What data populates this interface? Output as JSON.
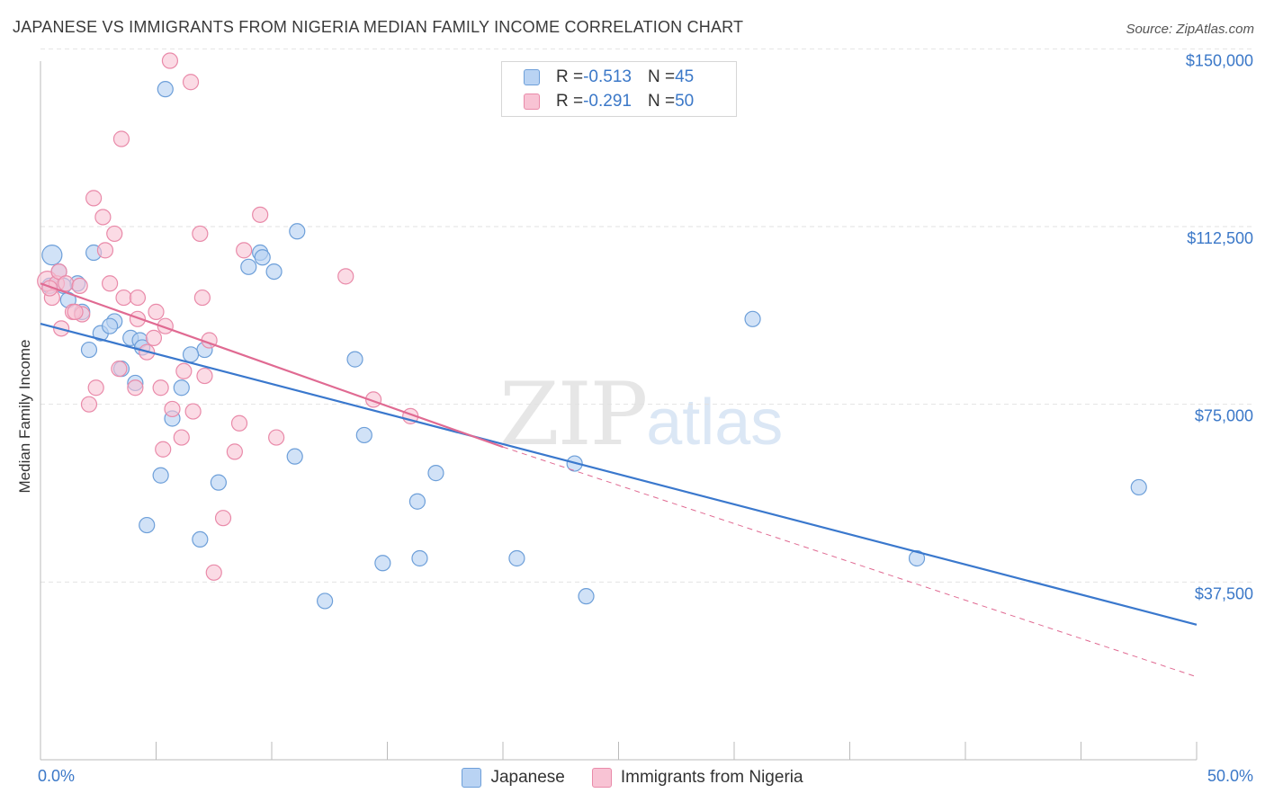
{
  "title": "JAPANESE VS IMMIGRANTS FROM NIGERIA MEDIAN FAMILY INCOME CORRELATION CHART",
  "source": "Source: ZipAtlas.com",
  "watermark": {
    "zip": "ZIP",
    "atlas": "atlas"
  },
  "legend_top": [
    {
      "r_label": "R = ",
      "r_value": "-0.513",
      "n_label": "N = ",
      "n_value": "45"
    },
    {
      "r_label": "R = ",
      "r_value": "-0.291",
      "n_label": "N = ",
      "n_value": "50"
    }
  ],
  "legend_bottom": [
    "Japanese",
    "Immigrants from Nigeria"
  ],
  "colors": {
    "japanese_fill": "#b9d3f3",
    "japanese_stroke": "#6d9fd9",
    "japanese_line": "#3a78cd",
    "nigeria_fill": "#f8c3d4",
    "nigeria_stroke": "#e98aa9",
    "nigeria_line": "#e06a92",
    "axis_text": "#3b78c8",
    "grid": "#e2e2e2"
  },
  "chart_data": {
    "type": "scatter",
    "title": "JAPANESE VS IMMIGRANTS FROM NIGERIA MEDIAN FAMILY INCOME CORRELATION CHART",
    "xlabel": "",
    "ylabel": "Median Family Income",
    "xlim": [
      0,
      50
    ],
    "ylim": [
      0,
      155000
    ],
    "x_tick_labels": [
      "0.0%",
      "50.0%"
    ],
    "y_ticks": [
      37500,
      75000,
      112500,
      150000
    ],
    "y_tick_labels": [
      "$37,500",
      "$75,000",
      "$112,500",
      "$150,000"
    ],
    "grid": "horizontal dashed",
    "legend_placement": "top-center",
    "series": [
      {
        "name": "Japanese",
        "R": -0.513,
        "N": 45,
        "trend": {
          "x": [
            0,
            50
          ],
          "y": [
            92000,
            28500
          ]
        },
        "points": [
          [
            0.5,
            106500
          ],
          [
            0.8,
            103000
          ],
          [
            0.4,
            100000
          ],
          [
            1.6,
            100500
          ],
          [
            1.0,
            100000
          ],
          [
            2.3,
            107000
          ],
          [
            5.4,
            141500
          ],
          [
            3.2,
            92500
          ],
          [
            1.2,
            97000
          ],
          [
            2.6,
            90000
          ],
          [
            3.9,
            89000
          ],
          [
            4.3,
            88500
          ],
          [
            1.8,
            94500
          ],
          [
            2.1,
            86500
          ],
          [
            4.4,
            87000
          ],
          [
            7.1,
            86500
          ],
          [
            6.5,
            85500
          ],
          [
            3.5,
            82500
          ],
          [
            4.1,
            79500
          ],
          [
            6.1,
            78500
          ],
          [
            5.7,
            72000
          ],
          [
            9.0,
            104000
          ],
          [
            9.5,
            107000
          ],
          [
            9.6,
            106000
          ],
          [
            10.1,
            103000
          ],
          [
            11.0,
            64000
          ],
          [
            11.1,
            111500
          ],
          [
            13.6,
            84500
          ],
          [
            14.0,
            68500
          ],
          [
            16.3,
            54500
          ],
          [
            17.1,
            60500
          ],
          [
            5.2,
            60000
          ],
          [
            7.7,
            58500
          ],
          [
            4.6,
            49500
          ],
          [
            6.9,
            46500
          ],
          [
            14.8,
            41500
          ],
          [
            16.4,
            42500
          ],
          [
            20.6,
            42500
          ],
          [
            23.1,
            62500
          ],
          [
            23.6,
            34500
          ],
          [
            12.3,
            33500
          ],
          [
            37.9,
            42500
          ],
          [
            30.8,
            93000
          ],
          [
            47.5,
            57500
          ],
          [
            3.0,
            91500
          ]
        ]
      },
      {
        "name": "Immigrants from Nigeria",
        "R": -0.291,
        "N": 50,
        "trend": {
          "x": [
            0,
            20
          ],
          "y": [
            100500,
            66000
          ]
        },
        "trend_extension": {
          "x": [
            20,
            50
          ],
          "y": [
            66000,
            17500
          ]
        },
        "points": [
          [
            0.3,
            101000
          ],
          [
            0.7,
            100500
          ],
          [
            0.5,
            97500
          ],
          [
            0.8,
            103000
          ],
          [
            1.1,
            100500
          ],
          [
            1.7,
            100000
          ],
          [
            1.4,
            94500
          ],
          [
            1.8,
            94000
          ],
          [
            0.9,
            91000
          ],
          [
            5.6,
            147500
          ],
          [
            6.5,
            143000
          ],
          [
            3.5,
            131000
          ],
          [
            2.3,
            118500
          ],
          [
            2.7,
            114500
          ],
          [
            3.2,
            111000
          ],
          [
            2.8,
            107500
          ],
          [
            6.9,
            111000
          ],
          [
            8.8,
            107500
          ],
          [
            9.5,
            115000
          ],
          [
            13.2,
            102000
          ],
          [
            3.0,
            100500
          ],
          [
            3.6,
            97500
          ],
          [
            4.2,
            97500
          ],
          [
            7.0,
            97500
          ],
          [
            5.0,
            94500
          ],
          [
            4.2,
            93000
          ],
          [
            5.4,
            91500
          ],
          [
            4.9,
            89000
          ],
          [
            7.3,
            88500
          ],
          [
            4.6,
            86000
          ],
          [
            3.4,
            82500
          ],
          [
            6.2,
            82000
          ],
          [
            7.1,
            81000
          ],
          [
            4.1,
            78500
          ],
          [
            5.2,
            78500
          ],
          [
            2.4,
            78500
          ],
          [
            2.1,
            75000
          ],
          [
            5.7,
            74000
          ],
          [
            6.6,
            73500
          ],
          [
            14.4,
            76000
          ],
          [
            16.0,
            72500
          ],
          [
            8.6,
            71000
          ],
          [
            10.2,
            68000
          ],
          [
            6.1,
            68000
          ],
          [
            5.3,
            65500
          ],
          [
            8.4,
            65000
          ],
          [
            7.9,
            51000
          ],
          [
            7.5,
            39500
          ],
          [
            0.4,
            99500
          ],
          [
            1.5,
            94500
          ]
        ]
      }
    ]
  }
}
